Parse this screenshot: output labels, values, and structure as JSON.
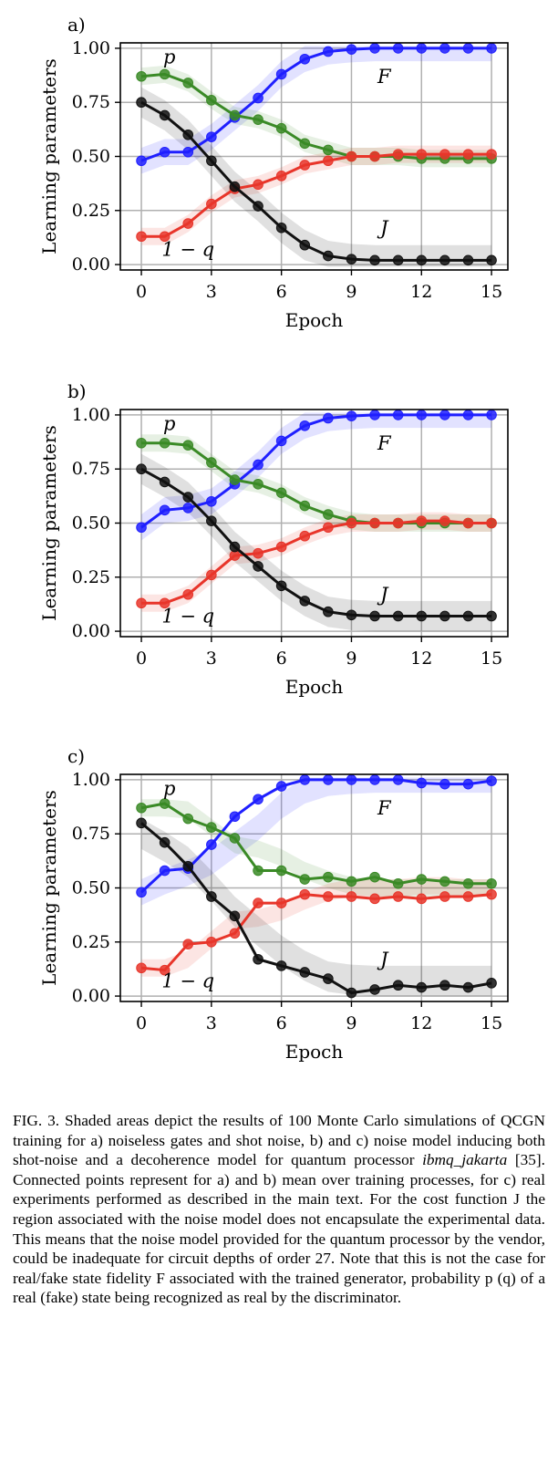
{
  "chart_data": [
    {
      "type": "line",
      "panel_label": "a)",
      "xlabel": "Epoch",
      "ylabel": "Learning parameters",
      "xlim": [
        -0.9,
        15.7
      ],
      "ylim": [
        -0.025,
        1.025
      ],
      "xticks": [
        0,
        3,
        6,
        9,
        12,
        15
      ],
      "yticks": [
        0.0,
        0.25,
        0.5,
        0.75,
        1.0
      ],
      "ytick_labels": [
        "0.00",
        "0.25",
        "0.50",
        "0.75",
        "1.00"
      ],
      "grid": true,
      "annotations": [
        {
          "text": "p",
          "x": 1.2,
          "y": 0.93,
          "italic": true
        },
        {
          "text": "F",
          "x": 10.4,
          "y": 0.84,
          "italic": true
        },
        {
          "text": "J",
          "x": 10.4,
          "y": 0.14,
          "italic": true
        },
        {
          "text": "1 − q",
          "x": 2.0,
          "y": 0.04,
          "italic": true
        }
      ],
      "x": [
        0,
        1,
        2,
        3,
        4,
        5,
        6,
        7,
        8,
        9,
        10,
        11,
        12,
        13,
        14,
        15
      ],
      "series": [
        {
          "name": "F",
          "color": "#1f1fff",
          "band": 0.06,
          "values": [
            0.48,
            0.52,
            0.52,
            0.59,
            0.68,
            0.77,
            0.88,
            0.95,
            0.985,
            0.995,
            1.0,
            1.0,
            1.0,
            1.0,
            1.0,
            1.0
          ]
        },
        {
          "name": "p",
          "color": "#3a8a26",
          "band": 0.04,
          "values": [
            0.87,
            0.88,
            0.84,
            0.76,
            0.69,
            0.67,
            0.63,
            0.56,
            0.53,
            0.5,
            0.5,
            0.5,
            0.49,
            0.49,
            0.49,
            0.49
          ]
        },
        {
          "name": "1 − q",
          "color": "#e8352a",
          "band": 0.04,
          "values": [
            0.13,
            0.13,
            0.19,
            0.28,
            0.35,
            0.37,
            0.41,
            0.46,
            0.48,
            0.5,
            0.5,
            0.51,
            0.51,
            0.51,
            0.51,
            0.51
          ]
        },
        {
          "name": "J",
          "color": "#111111",
          "band": 0.07,
          "values": [
            0.75,
            0.69,
            0.6,
            0.48,
            0.36,
            0.27,
            0.17,
            0.09,
            0.04,
            0.025,
            0.02,
            0.02,
            0.02,
            0.02,
            0.02,
            0.02
          ]
        }
      ]
    },
    {
      "type": "line",
      "panel_label": "b)",
      "xlabel": "Epoch",
      "ylabel": "Learning parameters",
      "xlim": [
        -0.9,
        15.7
      ],
      "ylim": [
        -0.025,
        1.025
      ],
      "xticks": [
        0,
        3,
        6,
        9,
        12,
        15
      ],
      "yticks": [
        0.0,
        0.25,
        0.5,
        0.75,
        1.0
      ],
      "ytick_labels": [
        "0.00",
        "0.25",
        "0.50",
        "0.75",
        "1.00"
      ],
      "grid": true,
      "annotations": [
        {
          "text": "p",
          "x": 1.2,
          "y": 0.93,
          "italic": true
        },
        {
          "text": "F",
          "x": 10.4,
          "y": 0.84,
          "italic": true
        },
        {
          "text": "J",
          "x": 10.4,
          "y": 0.14,
          "italic": true
        },
        {
          "text": "1 − q",
          "x": 2.0,
          "y": 0.04,
          "italic": true
        }
      ],
      "x": [
        0,
        1,
        2,
        3,
        4,
        5,
        6,
        7,
        8,
        9,
        10,
        11,
        12,
        13,
        14,
        15
      ],
      "series": [
        {
          "name": "F",
          "color": "#1f1fff",
          "band": 0.06,
          "values": [
            0.48,
            0.56,
            0.57,
            0.6,
            0.68,
            0.77,
            0.88,
            0.95,
            0.985,
            0.995,
            1.0,
            1.0,
            1.0,
            1.0,
            1.0,
            1.0
          ]
        },
        {
          "name": "p",
          "color": "#3a8a26",
          "band": 0.04,
          "values": [
            0.87,
            0.87,
            0.86,
            0.78,
            0.7,
            0.68,
            0.64,
            0.58,
            0.54,
            0.51,
            0.5,
            0.5,
            0.5,
            0.5,
            0.5,
            0.5
          ]
        },
        {
          "name": "1 − q",
          "color": "#e8352a",
          "band": 0.04,
          "values": [
            0.13,
            0.13,
            0.17,
            0.26,
            0.35,
            0.36,
            0.39,
            0.44,
            0.48,
            0.5,
            0.5,
            0.5,
            0.51,
            0.51,
            0.5,
            0.5
          ]
        },
        {
          "name": "J",
          "color": "#111111",
          "band": 0.07,
          "values": [
            0.75,
            0.69,
            0.62,
            0.51,
            0.39,
            0.3,
            0.21,
            0.14,
            0.09,
            0.075,
            0.07,
            0.07,
            0.07,
            0.07,
            0.07,
            0.07
          ]
        }
      ]
    },
    {
      "type": "line",
      "panel_label": "c)",
      "xlabel": "Epoch",
      "ylabel": "Learning parameters",
      "xlim": [
        -0.9,
        15.7
      ],
      "ylim": [
        -0.025,
        1.025
      ],
      "xticks": [
        0,
        3,
        6,
        9,
        12,
        15
      ],
      "yticks": [
        0.0,
        0.25,
        0.5,
        0.75,
        1.0
      ],
      "ytick_labels": [
        "0.00",
        "0.25",
        "0.50",
        "0.75",
        "1.00"
      ],
      "grid": true,
      "annotations": [
        {
          "text": "p",
          "x": 1.2,
          "y": 0.93,
          "italic": true
        },
        {
          "text": "F",
          "x": 10.4,
          "y": 0.84,
          "italic": true
        },
        {
          "text": "J",
          "x": 10.4,
          "y": 0.14,
          "italic": true
        },
        {
          "text": "1 − q",
          "x": 2.0,
          "y": 0.04,
          "italic": true
        }
      ],
      "x": [
        0,
        1,
        2,
        3,
        4,
        5,
        6,
        7,
        8,
        9,
        10,
        11,
        12,
        13,
        14,
        15
      ],
      "series": [
        {
          "name": "F",
          "color": "#1f1fff",
          "band": 0.06,
          "band_values": [
            0.48,
            0.53,
            0.57,
            0.62,
            0.7,
            0.78,
            0.88,
            0.95,
            0.985,
            0.995,
            1.0,
            1.0,
            1.0,
            1.0,
            1.0,
            1.0
          ],
          "values": [
            0.48,
            0.58,
            0.59,
            0.7,
            0.83,
            0.91,
            0.97,
            1.0,
            1.0,
            1.0,
            1.0,
            1.0,
            0.985,
            0.98,
            0.98,
            0.995
          ]
        },
        {
          "name": "p",
          "color": "#3a8a26",
          "band": 0.04,
          "band_values": [
            0.87,
            0.87,
            0.86,
            0.78,
            0.7,
            0.68,
            0.64,
            0.58,
            0.54,
            0.51,
            0.5,
            0.5,
            0.5,
            0.5,
            0.5,
            0.5
          ],
          "values": [
            0.87,
            0.89,
            0.82,
            0.78,
            0.73,
            0.58,
            0.58,
            0.54,
            0.55,
            0.53,
            0.55,
            0.52,
            0.54,
            0.53,
            0.52,
            0.52
          ]
        },
        {
          "name": "1 − q",
          "color": "#e8352a",
          "band": 0.04,
          "band_values": [
            0.13,
            0.13,
            0.17,
            0.26,
            0.35,
            0.36,
            0.39,
            0.44,
            0.48,
            0.5,
            0.5,
            0.5,
            0.51,
            0.51,
            0.5,
            0.5
          ],
          "values": [
            0.13,
            0.12,
            0.24,
            0.25,
            0.29,
            0.43,
            0.43,
            0.47,
            0.46,
            0.46,
            0.45,
            0.46,
            0.45,
            0.46,
            0.46,
            0.47
          ]
        },
        {
          "name": "J",
          "color": "#111111",
          "band": 0.07,
          "band_values": [
            0.75,
            0.69,
            0.62,
            0.51,
            0.39,
            0.3,
            0.21,
            0.14,
            0.09,
            0.075,
            0.07,
            0.07,
            0.07,
            0.07,
            0.07,
            0.07
          ],
          "values": [
            0.8,
            0.71,
            0.6,
            0.46,
            0.37,
            0.17,
            0.14,
            0.11,
            0.08,
            0.015,
            0.03,
            0.05,
            0.04,
            0.05,
            0.04,
            0.06
          ]
        }
      ]
    }
  ],
  "caption": {
    "lead": "FIG. 3.",
    "text_before_italic": "Shaded areas depict the results of 100 Monte Carlo simulations of QCGN training for a) noiseless gates and shot noise, b) and c) noise model inducing both shot-noise and a decoherence model for quantum processor",
    "italic": "ibmq_jakarta",
    "text_after_italic": "[35]. Connected points represent for a) and b) mean over training processes, for c) real experiments performed as described in the main text. For the cost function J the region associated with the noise model does not encapsulate the experimental data. This means that the noise model provided for the quantum processor by the vendor, could be inadequate for circuit depths of order 27. Note that this is not the case for real/fake state fidelity F associated with the trained generator, probability p (q) of a real (fake) state being recognized as real by the discriminator."
  }
}
